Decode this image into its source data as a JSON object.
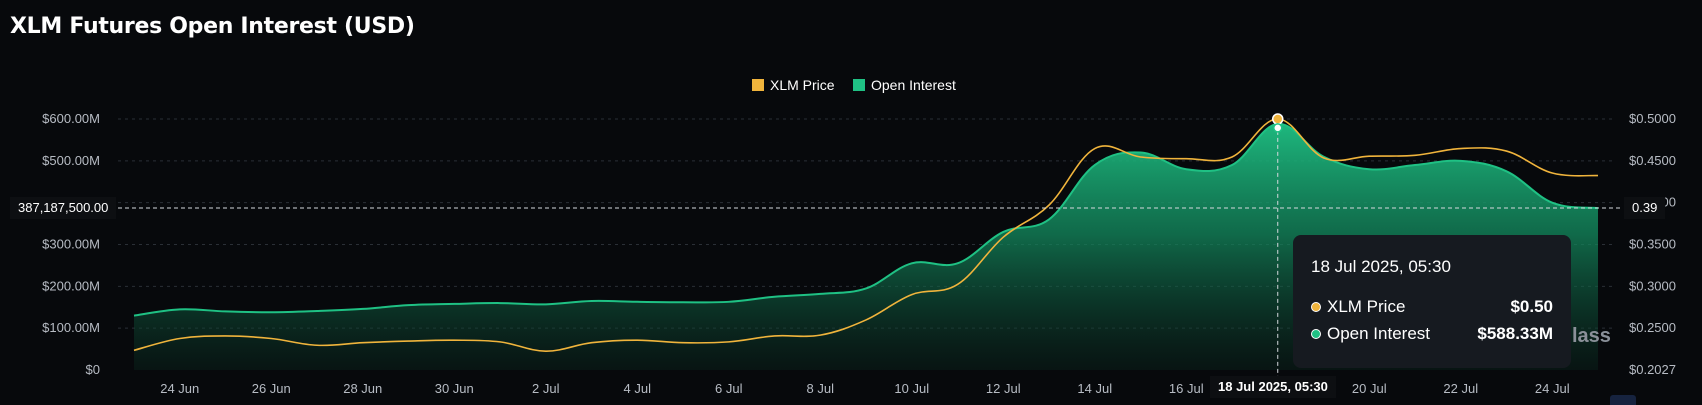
{
  "title": "XLM Futures Open Interest (USD)",
  "legend": [
    {
      "label": "XLM Price",
      "color": "#f0b43c"
    },
    {
      "label": "Open Interest",
      "color": "#1fc184"
    }
  ],
  "crosshair": {
    "left_value": "387,187,500.00",
    "right_value": "0.39",
    "x_label": "18 Jul 2025, 05:30"
  },
  "tooltip": {
    "date": "18 Jul 2025, 05:30",
    "rows": [
      {
        "name": "XLM Price",
        "value": "$0.50",
        "color": "#f0b43c"
      },
      {
        "name": "Open Interest",
        "value": "$588.33M",
        "color": "#1fc184"
      }
    ]
  },
  "watermark": "lass",
  "chart_data": {
    "type": "area",
    "title": "XLM Futures Open Interest (USD)",
    "x_ticks": [
      "24 Jun",
      "26 Jun",
      "28 Jun",
      "30 Jun",
      "2 Jul",
      "4 Jul",
      "6 Jul",
      "8 Jul",
      "10 Jul",
      "12 Jul",
      "14 Jul",
      "16 Jul",
      "18 Jul",
      "20 Jul",
      "22 Jul",
      "24 Jul"
    ],
    "x": [
      "23 Jun",
      "24 Jun",
      "25 Jun",
      "26 Jun",
      "27 Jun",
      "28 Jun",
      "29 Jun",
      "30 Jun",
      "1 Jul",
      "2 Jul",
      "3 Jul",
      "4 Jul",
      "5 Jul",
      "6 Jul",
      "7 Jul",
      "8 Jul",
      "9 Jul",
      "10 Jul",
      "11 Jul",
      "12 Jul",
      "13 Jul",
      "14 Jul",
      "15 Jul",
      "16 Jul",
      "17 Jul",
      "18 Jul",
      "19 Jul",
      "20 Jul",
      "21 Jul",
      "22 Jul",
      "23 Jul",
      "24 Jul",
      "25 Jul"
    ],
    "left_axis": {
      "ticks": [
        "$0",
        "$100.00M",
        "$200.00M",
        "$300.00M",
        "$400.00M",
        "$500.00M",
        "$600.00M"
      ],
      "ylim": [
        0,
        600000000
      ]
    },
    "right_axis": {
      "ticks": [
        "$0.2027",
        "$0.2500",
        "$0.3000",
        "$0.3500",
        "$0.4000",
        "$0.4500",
        "$0.5000"
      ],
      "ylim": [
        0.2027,
        0.5
      ]
    },
    "series": [
      {
        "name": "Open Interest",
        "axis": "left",
        "type": "area",
        "color": "#1fc184",
        "values": [
          130000000,
          145000000,
          140000000,
          138000000,
          141000000,
          146000000,
          155000000,
          158000000,
          160000000,
          157000000,
          165000000,
          163000000,
          162000000,
          163000000,
          175000000,
          182000000,
          195000000,
          255000000,
          255000000,
          330000000,
          360000000,
          490000000,
          520000000,
          480000000,
          490000000,
          588330000,
          510000000,
          480000000,
          490000000,
          500000000,
          475000000,
          400000000,
          387000000
        ]
      },
      {
        "name": "XLM Price",
        "axis": "right",
        "type": "line",
        "color": "#f0b43c",
        "values": [
          0.226,
          0.24,
          0.243,
          0.24,
          0.232,
          0.235,
          0.237,
          0.238,
          0.236,
          0.225,
          0.235,
          0.238,
          0.235,
          0.236,
          0.243,
          0.244,
          0.262,
          0.292,
          0.304,
          0.36,
          0.398,
          0.465,
          0.455,
          0.453,
          0.455,
          0.5,
          0.454,
          0.456,
          0.457,
          0.465,
          0.462,
          0.436,
          0.433
        ]
      }
    ],
    "grid": true,
    "legend_position": "top-center"
  }
}
